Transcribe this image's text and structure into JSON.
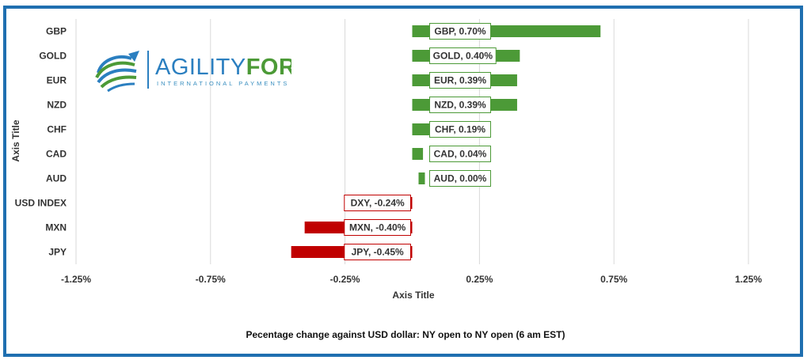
{
  "logo": {
    "brand_part1": "AGILITY",
    "brand_part2": "FOREX",
    "tagline": "INTERNATIONAL PAYMENTS"
  },
  "footer_title": "Pecentage change against USD dollar:  NY open to NY open  (6 am EST)",
  "colors": {
    "positive": "#4c9a37",
    "negative": "#c00000",
    "frame": "#1f6fb0",
    "gridline": "#d9d9d9"
  },
  "chart_data": {
    "type": "bar",
    "orientation": "horizontal",
    "categories": [
      "GBP",
      "GOLD",
      "EUR",
      "NZD",
      "CHF",
      "CAD",
      "AUD",
      "USD INDEX",
      "MXN",
      "JPY"
    ],
    "values": [
      0.7,
      0.4,
      0.39,
      0.39,
      0.19,
      0.04,
      0.0,
      -0.24,
      -0.4,
      -0.45
    ],
    "data_labels": [
      "GBP, 0.70%",
      "GOLD, 0.40%",
      "EUR, 0.39%",
      "NZD, 0.39%",
      "CHF, 0.19%",
      "CAD, 0.04%",
      "AUD, 0.00%",
      "DXY, -0.24%",
      "MXN, -0.40%",
      "JPY, -0.45%"
    ],
    "xlabel": "Axis Title",
    "ylabel": "Axis Title",
    "xlim": [
      -1.25,
      1.25
    ],
    "xticks": [
      -1.25,
      -0.75,
      -0.25,
      0.25,
      0.75,
      1.25
    ],
    "xtick_labels": [
      "-1.25%",
      "-0.75%",
      "-0.25%",
      "0.25%",
      "0.75%",
      "1.25%"
    ],
    "grid": "vertical",
    "legend": "none"
  }
}
